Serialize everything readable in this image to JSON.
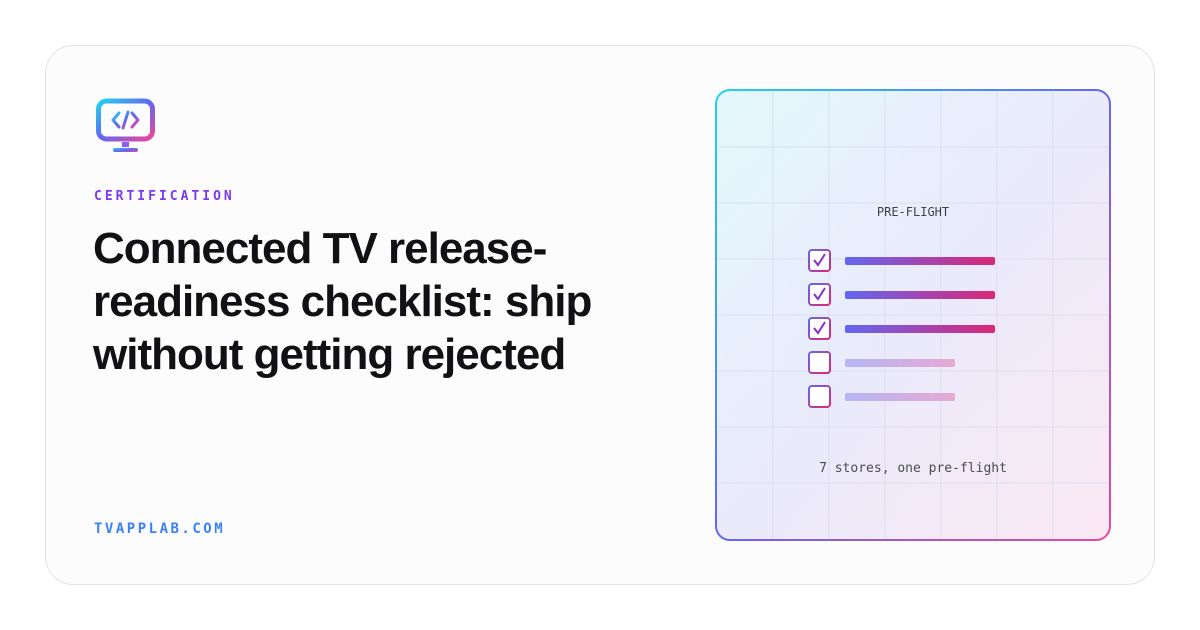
{
  "card": {
    "category": "CERTIFICATION",
    "title": "Connected TV release-readiness checklist: ship without getting rejected",
    "site": "TVAPPLAB.COM"
  },
  "panel": {
    "label": "PRE-FLIGHT",
    "caption": "7 stores, one pre-flight"
  }
}
